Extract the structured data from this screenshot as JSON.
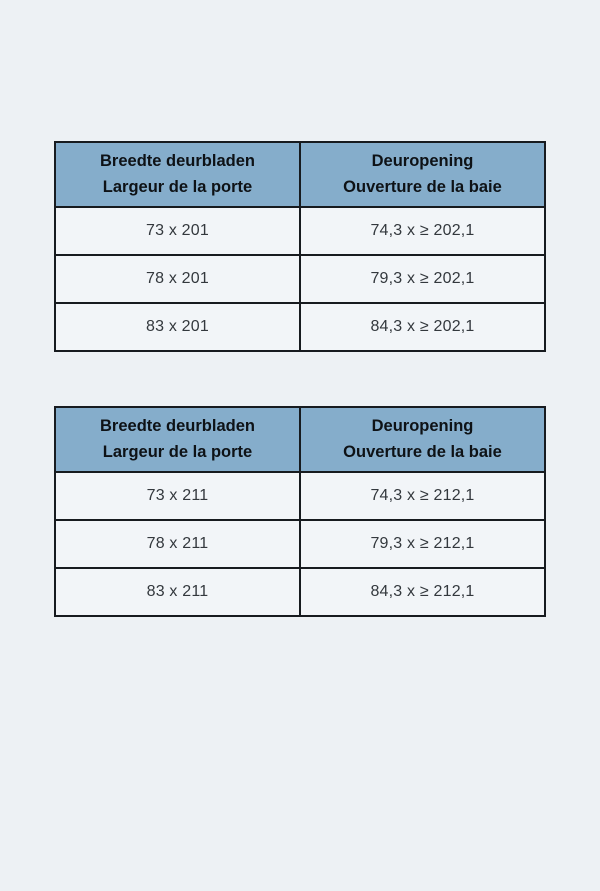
{
  "colors": {
    "page_background": "#edf1f4",
    "header_background": "#85adcb",
    "cell_background": "#f2f5f8",
    "border": "#171b1f",
    "header_text": "#0e1216",
    "cell_text": "#33383d"
  },
  "tables": [
    {
      "columns": [
        {
          "line1": "Breedte deurbladen",
          "line2": "Largeur de la porte"
        },
        {
          "line1": "Deuropening",
          "line2": "Ouverture de la baie"
        }
      ],
      "rows": [
        [
          "73 x 201",
          "74,3 x ≥ 202,1"
        ],
        [
          "78 x 201",
          "79,3 x ≥ 202,1"
        ],
        [
          "83 x 201",
          "84,3 x ≥ 202,1"
        ]
      ]
    },
    {
      "columns": [
        {
          "line1": "Breedte deurbladen",
          "line2": "Largeur de la porte"
        },
        {
          "line1": "Deuropening",
          "line2": "Ouverture de la baie"
        }
      ],
      "rows": [
        [
          "73 x 211",
          "74,3 x ≥ 212,1"
        ],
        [
          "78 x 211",
          "79,3 x ≥ 212,1"
        ],
        [
          "83 x 211",
          "84,3 x ≥ 212,1"
        ]
      ]
    }
  ]
}
